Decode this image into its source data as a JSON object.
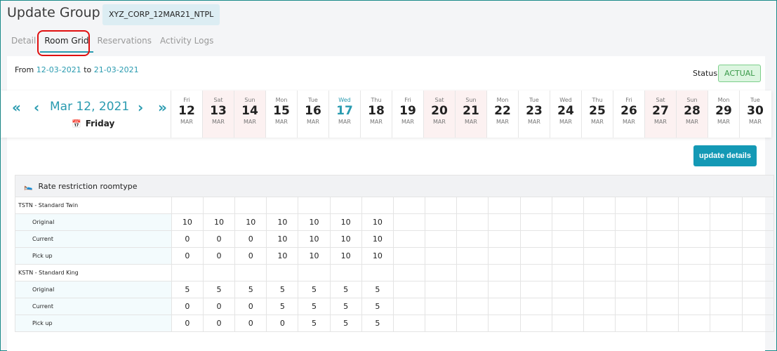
{
  "header": {
    "title": "Update Group",
    "group_code": "XYZ_CORP_12MAR21_NTPL"
  },
  "tabs": [
    {
      "label": "Detail"
    },
    {
      "label": "Room Grid",
      "active": true
    },
    {
      "label": "Reservations"
    },
    {
      "label": "Activity Logs"
    }
  ],
  "range": {
    "from_label": "From",
    "from": "12-03-2021",
    "to_label": "to",
    "to": "21-03-2021"
  },
  "status": {
    "label": "Status:",
    "value": "ACTUAL"
  },
  "navigator": {
    "current_date": "Mar 12, 2021",
    "current_day": "Friday",
    "first": "«",
    "prev": "‹",
    "next": "›",
    "last": "»"
  },
  "days": [
    {
      "dn": "Fri",
      "num": "12",
      "mo": "MAR"
    },
    {
      "dn": "Sat",
      "num": "13",
      "mo": "MAR",
      "weekend": true
    },
    {
      "dn": "Sun",
      "num": "14",
      "mo": "MAR",
      "weekend": true
    },
    {
      "dn": "Mon",
      "num": "15",
      "mo": "MAR"
    },
    {
      "dn": "Tue",
      "num": "16",
      "mo": "MAR"
    },
    {
      "dn": "Wed",
      "num": "17",
      "mo": "MAR",
      "today": true
    },
    {
      "dn": "Thu",
      "num": "18",
      "mo": "MAR"
    },
    {
      "dn": "Fri",
      "num": "19",
      "mo": "MAR"
    },
    {
      "dn": "Sat",
      "num": "20",
      "mo": "MAR",
      "weekend": true
    },
    {
      "dn": "Sun",
      "num": "21",
      "mo": "MAR",
      "weekend": true
    },
    {
      "dn": "Mon",
      "num": "22",
      "mo": "MAR"
    },
    {
      "dn": "Tue",
      "num": "23",
      "mo": "MAR"
    },
    {
      "dn": "Wed",
      "num": "24",
      "mo": "MAR"
    },
    {
      "dn": "Thu",
      "num": "25",
      "mo": "MAR"
    },
    {
      "dn": "Fri",
      "num": "26",
      "mo": "MAR"
    },
    {
      "dn": "Sat",
      "num": "27",
      "mo": "MAR",
      "weekend": true
    },
    {
      "dn": "Sun",
      "num": "28",
      "mo": "MAR",
      "weekend": true
    },
    {
      "dn": "Mon",
      "num": "29",
      "mo": "MAR"
    },
    {
      "dn": "Tue",
      "num": "30",
      "mo": "MAR"
    }
  ],
  "update_button": "update details",
  "grid": {
    "header": "Rate restriction roomtype",
    "icon": "bed-icon",
    "roomtypes": [
      {
        "name": "TSTN - Standard Twin",
        "rows": [
          {
            "label": "Original",
            "values": [
              "10",
              "10",
              "10",
              "10",
              "10",
              "10",
              "10"
            ]
          },
          {
            "label": "Current",
            "values": [
              "0",
              "0",
              "0",
              "10",
              "10",
              "10",
              "10"
            ]
          },
          {
            "label": "Pick up",
            "values": [
              "0",
              "0",
              "0",
              "10",
              "10",
              "10",
              "10"
            ]
          }
        ]
      },
      {
        "name": "KSTN - Standard King",
        "rows": [
          {
            "label": "Original",
            "values": [
              "5",
              "5",
              "5",
              "5",
              "5",
              "5",
              "5"
            ]
          },
          {
            "label": "Current",
            "values": [
              "0",
              "0",
              "0",
              "5",
              "5",
              "5",
              "5"
            ]
          },
          {
            "label": "Pick up",
            "values": [
              "0",
              "0",
              "0",
              "0",
              "5",
              "5",
              "5"
            ]
          }
        ]
      }
    ]
  },
  "colors": {
    "accent": "#2a9bb0",
    "button": "#1499b5",
    "weekend": "#fcf1f1",
    "highlight_ring": "#e01010"
  }
}
